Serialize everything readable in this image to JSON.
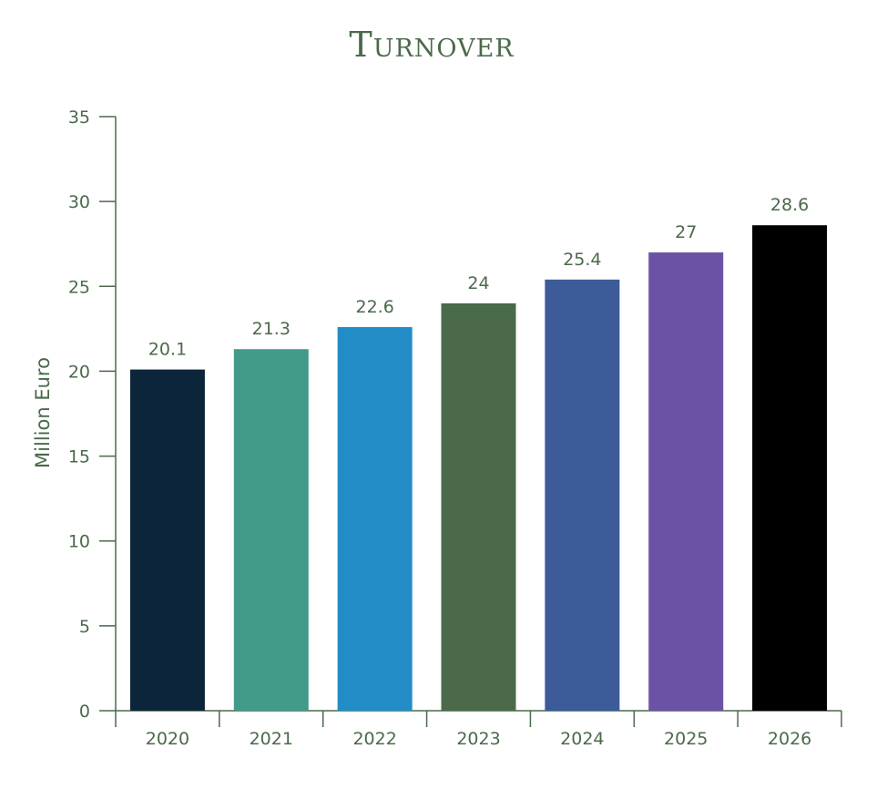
{
  "colors": {
    "text": "#4a6a4a",
    "axis": "#4a6a4a"
  },
  "chart_data": {
    "type": "bar",
    "title": "Turnover",
    "xlabel": "",
    "ylabel": "Million Euro",
    "ylim": [
      0,
      35
    ],
    "yticks": [
      0,
      5,
      10,
      15,
      20,
      25,
      30,
      35
    ],
    "grid": false,
    "categories": [
      "2020",
      "2021",
      "2022",
      "2023",
      "2024",
      "2025",
      "2026"
    ],
    "values": [
      20.1,
      21.3,
      22.6,
      24,
      25.4,
      27,
      28.6
    ],
    "value_labels": [
      "20.1",
      "21.3",
      "22.6",
      "24",
      "25.4",
      "27",
      "28.6"
    ],
    "bar_colors": [
      "#0d253a",
      "#439a89",
      "#228cc6",
      "#4a6a4a",
      "#3d5b99",
      "#6a53a5",
      "#000000"
    ]
  }
}
